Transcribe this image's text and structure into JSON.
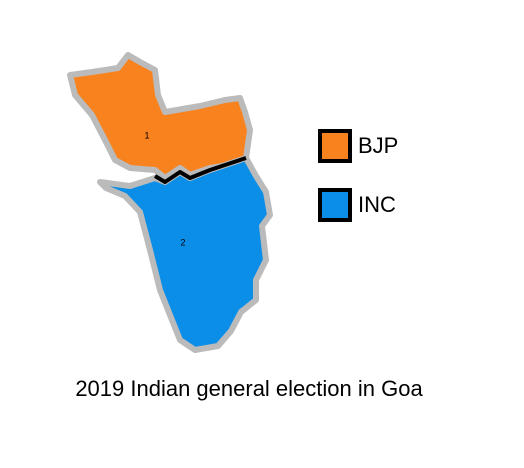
{
  "map": {
    "title": "2019 Indian general election in Goa",
    "regions": [
      {
        "label": "1",
        "color": "#f8821e"
      },
      {
        "label": "2",
        "color": "#0a8ee8"
      }
    ],
    "legend": [
      {
        "name": "BJP",
        "color": "#f8821e"
      },
      {
        "name": "INC",
        "color": "#0a8ee8"
      }
    ]
  }
}
